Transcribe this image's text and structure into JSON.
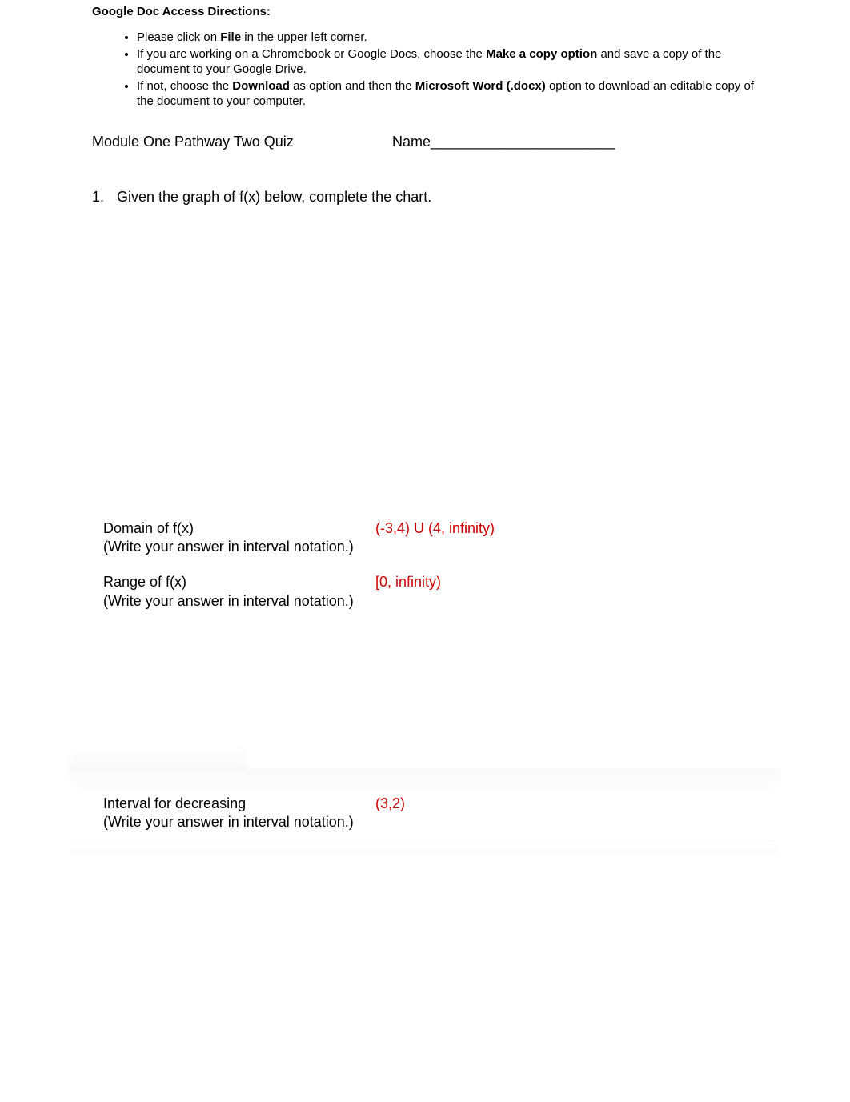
{
  "directions": {
    "title": "Google Doc Access Directions:",
    "bullets": [
      {
        "pre": "Please click on ",
        "bold1": "File",
        "post": " in the upper left corner."
      },
      {
        "pre": "If you are working on a Chromebook or Google Docs, choose the ",
        "bold1": "Make a copy option",
        "post": " and save a copy of the document to your Google Drive."
      },
      {
        "pre": "If not, choose the ",
        "bold1": "Download",
        "mid": " as option and then the ",
        "bold2": "Microsoft Word (.docx)",
        "post": " option to download an editable copy of the document to your computer."
      }
    ]
  },
  "header": {
    "module_title": "Module One Pathway Two Quiz",
    "name_label": "Name_______________________"
  },
  "question1": {
    "number": "1.",
    "text": "Given the graph of f(x) below, complete the chart."
  },
  "rows": {
    "domain": {
      "label": "Domain of f(x)",
      "hint": "(Write your answer in interval notation.)",
      "answer": "(-3,4) U (4, infinity)"
    },
    "range": {
      "label": "Range of f(x)",
      "hint": "(Write your answer in interval notation.)",
      "answer": "[0, infinity)"
    },
    "decreasing": {
      "label": "Interval for decreasing",
      "hint": "(Write your answer in interval notation.)",
      "answer": "(3,2)"
    }
  },
  "colors": {
    "answer_color": "#cc0000",
    "text_color": "#000000",
    "background": "#ffffff"
  }
}
